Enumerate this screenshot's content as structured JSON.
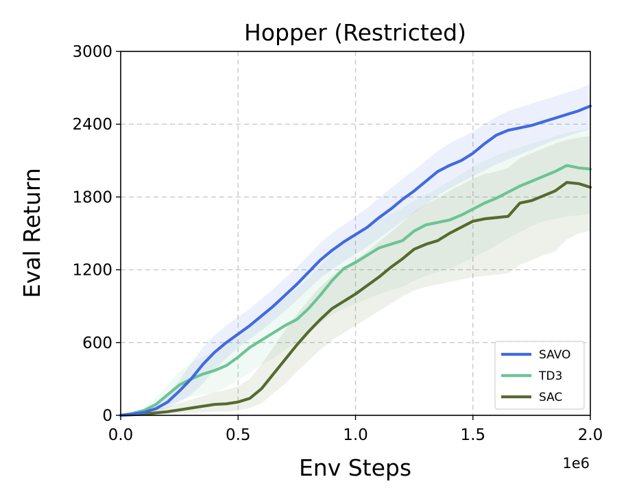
{
  "chart_data": {
    "type": "line",
    "title": "Hopper (Restricted)",
    "xlabel": "Env Steps",
    "ylabel": "Eval Return",
    "x_offset_label": "1e6",
    "xlim": [
      0.0,
      2.0
    ],
    "ylim": [
      0,
      3000
    ],
    "xticks": [
      0.0,
      0.5,
      1.0,
      1.5,
      2.0
    ],
    "xtick_labels": [
      "0.0",
      "0.5",
      "1.0",
      "1.5",
      "2.0"
    ],
    "yticks": [
      0,
      600,
      1200,
      1800,
      2400,
      3000
    ],
    "ytick_labels": [
      "0",
      "600",
      "1200",
      "1800",
      "2400",
      "3000"
    ],
    "grid": true,
    "legend_position": "bottom-right",
    "x": [
      0.0,
      0.05,
      0.1,
      0.15,
      0.2,
      0.25,
      0.3,
      0.35,
      0.4,
      0.45,
      0.5,
      0.55,
      0.6,
      0.65,
      0.7,
      0.75,
      0.8,
      0.85,
      0.9,
      0.95,
      1.0,
      1.05,
      1.1,
      1.15,
      1.2,
      1.25,
      1.3,
      1.35,
      1.4,
      1.45,
      1.5,
      1.55,
      1.6,
      1.65,
      1.7,
      1.75,
      1.8,
      1.85,
      1.9,
      1.95,
      2.0
    ],
    "series": [
      {
        "name": "SAVO",
        "color": "#4169e1",
        "band_color": "#4169e1",
        "values": [
          0,
          10,
          25,
          55,
          110,
          200,
          300,
          420,
          520,
          600,
          670,
          740,
          820,
          900,
          990,
          1080,
          1180,
          1280,
          1360,
          1430,
          1490,
          1550,
          1630,
          1700,
          1780,
          1850,
          1930,
          2010,
          2060,
          2100,
          2160,
          2240,
          2310,
          2350,
          2370,
          2390,
          2420,
          2450,
          2480,
          2510,
          2550
        ],
        "lower": [
          0,
          5,
          12,
          30,
          60,
          110,
          170,
          260,
          380,
          470,
          560,
          630,
          700,
          780,
          860,
          950,
          1040,
          1130,
          1200,
          1270,
          1330,
          1390,
          1460,
          1530,
          1600,
          1670,
          1740,
          1810,
          1870,
          1920,
          1970,
          2020,
          2070,
          2110,
          2150,
          2190,
          2230,
          2270,
          2300,
          2330,
          2360
        ],
        "upper": [
          0,
          15,
          40,
          90,
          170,
          290,
          430,
          560,
          660,
          740,
          810,
          880,
          960,
          1040,
          1130,
          1220,
          1320,
          1420,
          1500,
          1570,
          1640,
          1710,
          1790,
          1870,
          1950,
          2020,
          2100,
          2180,
          2240,
          2290,
          2340,
          2400,
          2460,
          2510,
          2540,
          2570,
          2600,
          2630,
          2660,
          2690,
          2730
        ]
      },
      {
        "name": "TD3",
        "color": "#6cc396",
        "band_color": "#6cc396",
        "values": [
          0,
          15,
          40,
          90,
          170,
          250,
          300,
          340,
          370,
          410,
          480,
          560,
          620,
          680,
          740,
          790,
          880,
          990,
          1110,
          1210,
          1260,
          1320,
          1380,
          1410,
          1440,
          1520,
          1570,
          1590,
          1610,
          1650,
          1700,
          1750,
          1790,
          1840,
          1890,
          1930,
          1970,
          2010,
          2060,
          2040,
          2030
        ],
        "lower": [
          0,
          5,
          15,
          40,
          80,
          120,
          150,
          170,
          190,
          230,
          290,
          350,
          420,
          470,
          540,
          600,
          680,
          760,
          830,
          880,
          920,
          960,
          1000,
          1030,
          1060,
          1110,
          1150,
          1180,
          1210,
          1250,
          1300,
          1350,
          1400,
          1460,
          1510,
          1560,
          1600,
          1620,
          1640,
          1650,
          1660
        ],
        "upper": [
          0,
          25,
          70,
          140,
          250,
          360,
          430,
          480,
          530,
          580,
          660,
          750,
          820,
          900,
          970,
          1040,
          1130,
          1230,
          1340,
          1430,
          1490,
          1560,
          1620,
          1660,
          1710,
          1770,
          1820,
          1870,
          1930,
          1990,
          2050,
          2100,
          2140,
          2180,
          2210,
          2240,
          2270,
          2300,
          2330,
          2350,
          2360
        ]
      },
      {
        "name": "SAC",
        "color": "#556b2f",
        "band_color": "#556b2f",
        "values": [
          0,
          5,
          10,
          20,
          30,
          45,
          60,
          75,
          90,
          95,
          110,
          140,
          220,
          340,
          460,
          580,
          690,
          790,
          880,
          940,
          1000,
          1070,
          1140,
          1220,
          1290,
          1370,
          1410,
          1440,
          1500,
          1550,
          1600,
          1620,
          1630,
          1640,
          1750,
          1770,
          1810,
          1850,
          1920,
          1910,
          1880
        ],
        "lower": [
          0,
          0,
          0,
          5,
          10,
          15,
          20,
          25,
          30,
          30,
          40,
          60,
          100,
          180,
          260,
          360,
          450,
          540,
          620,
          680,
          740,
          800,
          860,
          920,
          980,
          1030,
          1060,
          1080,
          1100,
          1120,
          1140,
          1150,
          1160,
          1170,
          1240,
          1280,
          1320,
          1350,
          1450,
          1500,
          1520
        ],
        "upper": [
          0,
          15,
          30,
          50,
          70,
          100,
          130,
          160,
          190,
          210,
          240,
          300,
          420,
          560,
          700,
          830,
          950,
          1060,
          1150,
          1220,
          1280,
          1350,
          1430,
          1510,
          1590,
          1680,
          1740,
          1790,
          1850,
          1900,
          1950,
          1990,
          2010,
          2040,
          2120,
          2160,
          2200,
          2240,
          2270,
          2290,
          2300
        ]
      }
    ]
  }
}
